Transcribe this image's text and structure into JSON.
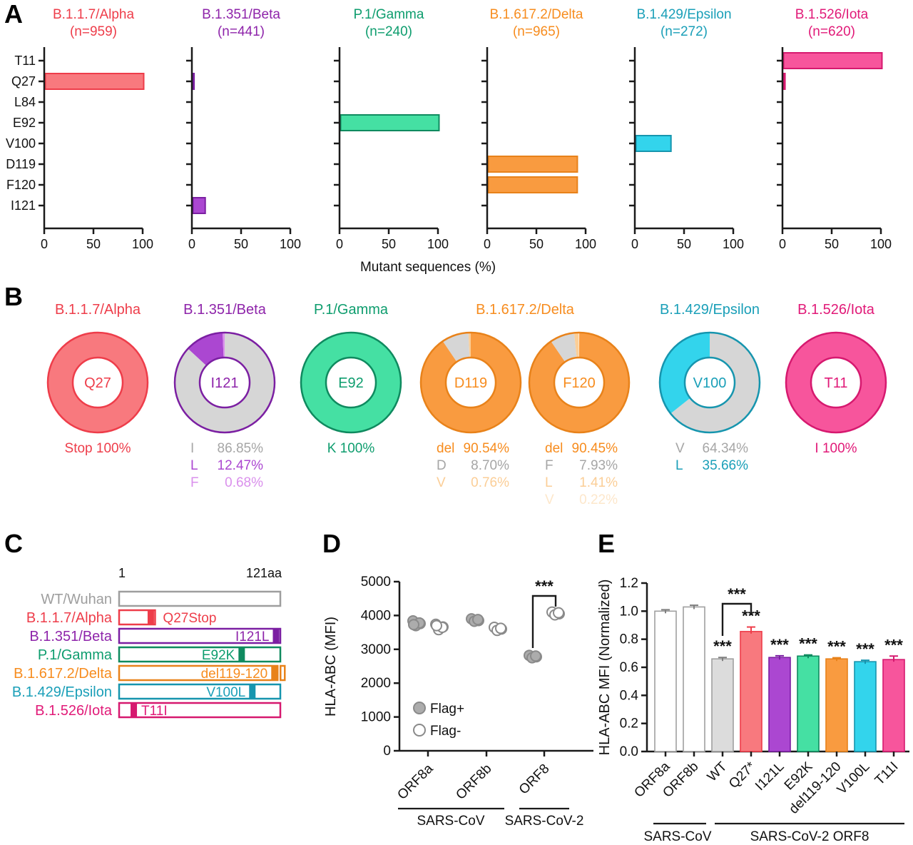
{
  "figure": {
    "panel_labels": [
      "A",
      "B",
      "C",
      "D",
      "E"
    ],
    "background": "#FFFFFF"
  },
  "colors": {
    "axis": "#1A1A1A",
    "gray_slice": "#D6D6D6",
    "gray_text": "#A6A6A6",
    "scatter": {
      "fill": "#ACACAC",
      "stroke": "#8A8A8A"
    },
    "variants": {
      "wt": {
        "fill": "#FFFFFF",
        "stroke": "#9E9E9E",
        "text": "#9E9E9E"
      },
      "white": {
        "fill": "#FFFFFF",
        "stroke": "#A0A0A0",
        "text": "#333333"
      },
      "gray": {
        "fill": "#DCDCDC",
        "stroke": "#A0A0A0",
        "text": "#7F7F7F"
      },
      "alpha": {
        "fill": "#F8797E",
        "stroke": "#EE3D4A",
        "text": "#EE3D4A"
      },
      "beta": {
        "fill": "#AB47D1",
        "stroke": "#7B1FA2",
        "text": "#8E24AA",
        "light": "#DA90EC",
        "lighter": "#EBC3F5"
      },
      "gamma": {
        "fill": "#45E0A3",
        "stroke": "#0F8A5F",
        "text": "#0E9D6E"
      },
      "delta": {
        "fill": "#F99B40",
        "stroke": "#E8821A",
        "text": "#F78C1E",
        "light": "#FBCE97",
        "lighter": "#FDE7CB"
      },
      "epsilon": {
        "fill": "#33D4EC",
        "stroke": "#1695AE",
        "text": "#1A9FB8"
      },
      "iota": {
        "fill": "#F7559C",
        "stroke": "#D6196F",
        "text": "#E11A78"
      }
    }
  },
  "chart_data": [
    {
      "id": "panel_a",
      "type": "bar",
      "orientation": "horizontal",
      "categories": [
        "T11",
        "Q27",
        "L84",
        "E92",
        "V100",
        "D119",
        "F120",
        "I121"
      ],
      "xlabel": "Mutant sequences (%)",
      "xlim": [
        0,
        100
      ],
      "x_ticks": [
        0,
        50,
        100
      ],
      "subplots": [
        {
          "title": "B.1.1.7/Alpha",
          "n_label": "(n=959)",
          "variant": "alpha",
          "values": {
            "Q27": 100
          }
        },
        {
          "title": "B.1.351/Beta",
          "n_label": "(n=441)",
          "variant": "beta",
          "values": {
            "Q27": 1,
            "I121": 12.47
          }
        },
        {
          "title": "P.1/Gamma",
          "n_label": "(n=240)",
          "variant": "gamma",
          "values": {
            "E92": 100
          }
        },
        {
          "title": "B.1.617.2/Delta",
          "n_label": "(n=965)",
          "variant": "delta",
          "values": {
            "D119": 90.54,
            "F120": 90.45
          }
        },
        {
          "title": "B.1.429/Epsilon",
          "n_label": "(n=272)",
          "variant": "epsilon",
          "values": {
            "V100": 35.66
          }
        },
        {
          "title": "B.1.526/Iota",
          "n_label": "(n=620)",
          "variant": "iota",
          "values": {
            "T11": 100,
            "Q27": 1.5
          }
        }
      ]
    },
    {
      "id": "panel_b",
      "type": "pie",
      "style": "donut",
      "groups": [
        {
          "title": "B.1.1.7/Alpha",
          "variant": "alpha",
          "donuts": [
            {
              "center_label": "Q27",
              "slices": [
                {
                  "label": "Stop",
                  "pct": 100,
                  "tone": "main"
                }
              ],
              "legend": [
                {
                  "k": "Stop",
                  "v": "100%",
                  "tone": "text",
                  "single": true
                }
              ]
            }
          ]
        },
        {
          "title": "B.1.351/Beta",
          "variant": "beta",
          "donuts": [
            {
              "center_label": "I121",
              "slices": [
                {
                  "label": "I",
                  "pct": 86.85,
                  "tone": "gray"
                },
                {
                  "label": "L",
                  "pct": 12.47,
                  "tone": "main"
                },
                {
                  "label": "F",
                  "pct": 0.68,
                  "tone": "light"
                }
              ],
              "legend": [
                {
                  "k": "I",
                  "v": "86.85%",
                  "tone": "gray"
                },
                {
                  "k": "L",
                  "v": "12.47%",
                  "tone": "main"
                },
                {
                  "k": "F",
                  "v": "0.68%",
                  "tone": "light"
                }
              ]
            }
          ]
        },
        {
          "title": "P.1/Gamma",
          "variant": "gamma",
          "donuts": [
            {
              "center_label": "E92",
              "slices": [
                {
                  "label": "K",
                  "pct": 100,
                  "tone": "main"
                }
              ],
              "legend": [
                {
                  "k": "K",
                  "v": "100%",
                  "tone": "text",
                  "single": true
                }
              ]
            }
          ]
        },
        {
          "title": "B.1.617.2/Delta",
          "variant": "delta",
          "donuts": [
            {
              "center_label": "D119",
              "slices": [
                {
                  "label": "del",
                  "pct": 90.54,
                  "tone": "main"
                },
                {
                  "label": "D",
                  "pct": 8.7,
                  "tone": "gray"
                },
                {
                  "label": "V",
                  "pct": 0.76,
                  "tone": "light"
                }
              ],
              "legend": [
                {
                  "k": "del",
                  "v": "90.54%",
                  "tone": "text"
                },
                {
                  "k": "D",
                  "v": "8.70%",
                  "tone": "gray"
                },
                {
                  "k": "V",
                  "v": "0.76%",
                  "tone": "light"
                }
              ]
            },
            {
              "center_label": "F120",
              "slices": [
                {
                  "label": "del",
                  "pct": 90.45,
                  "tone": "main"
                },
                {
                  "label": "F",
                  "pct": 7.93,
                  "tone": "gray"
                },
                {
                  "label": "L",
                  "pct": 1.41,
                  "tone": "light"
                },
                {
                  "label": "V",
                  "pct": 0.22,
                  "tone": "lighter"
                }
              ],
              "legend": [
                {
                  "k": "del",
                  "v": "90.45%",
                  "tone": "text"
                },
                {
                  "k": "F",
                  "v": "7.93%",
                  "tone": "gray"
                },
                {
                  "k": "L",
                  "v": "1.41%",
                  "tone": "light"
                },
                {
                  "k": "V",
                  "v": "0.22%",
                  "tone": "lighter"
                }
              ]
            }
          ]
        },
        {
          "title": "B.1.429/Epsilon",
          "variant": "epsilon",
          "donuts": [
            {
              "center_label": "V100",
              "slices": [
                {
                  "label": "V",
                  "pct": 64.34,
                  "tone": "gray"
                },
                {
                  "label": "L",
                  "pct": 35.66,
                  "tone": "main"
                }
              ],
              "legend": [
                {
                  "k": "V",
                  "v": "64.34%",
                  "tone": "gray"
                },
                {
                  "k": "L",
                  "v": "35.66%",
                  "tone": "text"
                }
              ]
            }
          ]
        },
        {
          "title": "B.1.526/Iota",
          "variant": "iota",
          "donuts": [
            {
              "center_label": "T11",
              "slices": [
                {
                  "label": "I",
                  "pct": 100,
                  "tone": "main"
                }
              ],
              "legend": [
                {
                  "k": "I",
                  "v": "100%",
                  "tone": "text",
                  "single": true
                }
              ]
            }
          ]
        }
      ]
    },
    {
      "id": "panel_c",
      "type": "diagram",
      "axis_start": "1",
      "axis_end": "121aa",
      "length_aa": 121,
      "rows": [
        {
          "name": "WT/Wuhan",
          "variant": "wt",
          "box_start": 1,
          "box_end": 121,
          "marker_pos": null,
          "mutation_label": "",
          "label_side": ""
        },
        {
          "name": "B.1.1.7/Alpha",
          "variant": "alpha",
          "box_start": 1,
          "box_end": 27,
          "marker_pos": 27,
          "mutation_label": "Q27Stop",
          "label_side": "outside"
        },
        {
          "name": "B.1.351/Beta",
          "variant": "beta",
          "box_start": 1,
          "box_end": 121,
          "marker_pos": 121,
          "mutation_label": "I121L",
          "label_side": "left"
        },
        {
          "name": "P.1/Gamma",
          "variant": "gamma",
          "box_start": 1,
          "box_end": 121,
          "marker_pos": 92,
          "mutation_label": "E92K",
          "label_side": "left"
        },
        {
          "name": "B.1.617.2/Delta",
          "variant": "delta",
          "box_start": 1,
          "box_end": 121,
          "marker_pos": 119,
          "mutation_label": "del119-120",
          "label_side": "left",
          "notch": true
        },
        {
          "name": "B.1.429/Epsilon",
          "variant": "epsilon",
          "box_start": 1,
          "box_end": 121,
          "marker_pos": 100,
          "mutation_label": "V100L",
          "label_side": "left"
        },
        {
          "name": "B.1.526/Iota",
          "variant": "iota",
          "box_start": 1,
          "box_end": 121,
          "marker_pos": 11,
          "mutation_label": "T11I",
          "label_side": "right"
        }
      ]
    },
    {
      "id": "panel_d",
      "type": "scatter",
      "ylabel": "HLA-ABC (MFI)",
      "ylim": [
        0,
        5000
      ],
      "y_ticks": [
        0,
        1000,
        2000,
        3000,
        4000,
        5000
      ],
      "legend": [
        {
          "label": "Flag+",
          "style": "filled"
        },
        {
          "label": "Flag-",
          "style": "open"
        }
      ],
      "groups": [
        {
          "label": "ORF8a",
          "flag_pos": [
            3840,
            3760,
            3700,
            3780,
            3730
          ],
          "flag_neg": [
            3740,
            3660,
            3580,
            3650,
            3700
          ]
        },
        {
          "label": "ORF8b",
          "flag_pos": [
            3900,
            3850,
            3830,
            3880
          ],
          "flag_neg": [
            3650,
            3600,
            3560,
            3620
          ]
        },
        {
          "label": "ORF8",
          "flag_pos": [
            2820,
            2780,
            2750,
            2800
          ],
          "flag_neg": [
            4100,
            4050,
            4020,
            4080
          ]
        }
      ],
      "significance": {
        "group": "ORF8",
        "between": [
          "Flag+",
          "Flag-"
        ],
        "stars": "***"
      },
      "group_labels": [
        {
          "text": "SARS-CoV",
          "span": [
            0,
            1
          ]
        },
        {
          "text": "SARS-CoV-2",
          "span": [
            2,
            2
          ]
        }
      ]
    },
    {
      "id": "panel_e",
      "type": "bar",
      "orientation": "vertical",
      "ylabel": "HLA-ABC MFI (Normalized)",
      "ylim": [
        0,
        1.2
      ],
      "y_ticks": [
        0,
        0.2,
        0.4,
        0.6,
        0.8,
        1,
        1.2
      ],
      "bars": [
        {
          "label": "ORF8a",
          "value": 1.0,
          "err": 0.01,
          "variant": "white",
          "stars": ""
        },
        {
          "label": "ORF8b",
          "value": 1.03,
          "err": 0.012,
          "variant": "white",
          "stars": ""
        },
        {
          "label": "WT",
          "value": 0.66,
          "err": 0.01,
          "variant": "gray",
          "stars": "***"
        },
        {
          "label": "Q27*",
          "value": 0.855,
          "err": 0.032,
          "variant": "alpha",
          "stars": "***"
        },
        {
          "label": "I121L",
          "value": 0.67,
          "err": 0.012,
          "variant": "beta",
          "stars": "***"
        },
        {
          "label": "E92K",
          "value": 0.68,
          "err": 0.008,
          "variant": "gamma",
          "stars": "***"
        },
        {
          "label": "del119-120",
          "value": 0.66,
          "err": 0.008,
          "variant": "delta",
          "stars": "***"
        },
        {
          "label": "V100L",
          "value": 0.64,
          "err": 0.01,
          "variant": "epsilon",
          "stars": "***"
        },
        {
          "label": "T11I",
          "value": 0.655,
          "err": 0.025,
          "variant": "iota",
          "stars": "***"
        }
      ],
      "bracket": {
        "between": [
          "WT",
          "Q27*"
        ],
        "stars": "***"
      },
      "group_labels": [
        {
          "text": "SARS-CoV",
          "span": [
            0,
            1
          ]
        },
        {
          "text": "SARS-CoV-2 ORF8",
          "span": [
            2,
            8
          ]
        }
      ]
    }
  ]
}
